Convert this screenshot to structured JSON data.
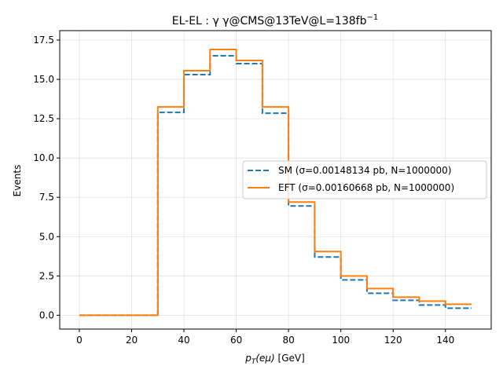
{
  "chart_data": {
    "type": "line",
    "drawstyle": "steps-post",
    "title_main": "EL-EL : γ γ@CMS@13TeV@L=138fb",
    "title_sup": "−1",
    "xlabel_main": "p",
    "xlabel_sub": "T",
    "xlabel_var": "(eμ)",
    "xlabel_unit": " [GeV]",
    "ylabel": "Events",
    "xlim": [
      -7.5,
      157.5
    ],
    "ylim": [
      -0.88,
      18.1
    ],
    "x_ticks": [
      0,
      20,
      40,
      60,
      80,
      100,
      120,
      140
    ],
    "x_tick_labels": [
      "0",
      "20",
      "40",
      "60",
      "80",
      "100",
      "120",
      "140"
    ],
    "y_ticks": [
      0.0,
      2.5,
      5.0,
      7.5,
      10.0,
      12.5,
      15.0,
      17.5
    ],
    "y_tick_labels": [
      "0.0",
      "2.5",
      "5.0",
      "7.5",
      "10.0",
      "12.5",
      "15.0",
      "17.5"
    ],
    "grid": true,
    "legend_position": "center-right",
    "x": [
      0,
      10,
      20,
      30,
      40,
      50,
      60,
      70,
      80,
      90,
      100,
      110,
      120,
      130,
      140,
      150
    ],
    "series": [
      {
        "name": "SM (σ=0.00148134 pb, N=1000000)",
        "color": "#1f77b4",
        "linestyle": "dashed",
        "values": [
          0,
          0,
          0,
          12.9,
          15.3,
          16.5,
          16.0,
          12.85,
          6.95,
          3.7,
          2.25,
          1.4,
          0.95,
          0.65,
          0.45,
          0.45
        ]
      },
      {
        "name": "EFT (σ=0.00160668 pb, N=1000000)",
        "color": "#ff7f0e",
        "linestyle": "solid",
        "values": [
          0,
          0,
          0,
          13.25,
          15.55,
          16.9,
          16.2,
          13.25,
          7.2,
          4.05,
          2.5,
          1.7,
          1.15,
          0.9,
          0.7,
          0.7
        ]
      }
    ]
  }
}
